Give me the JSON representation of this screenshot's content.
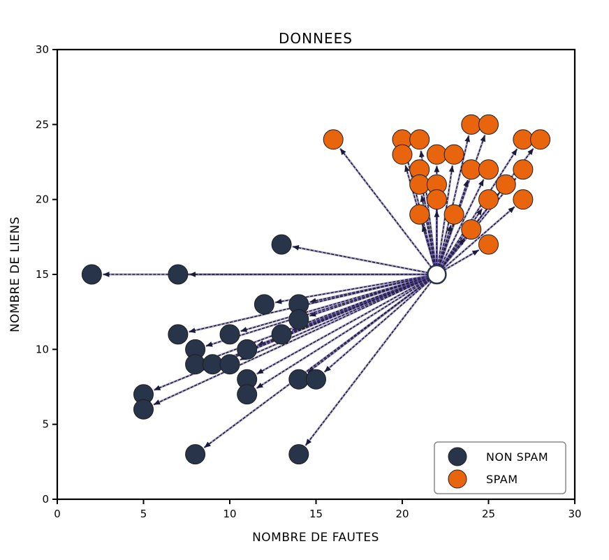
{
  "chart_data": {
    "type": "scatter",
    "title": "DONNEES",
    "xlabel": "NOMBRE DE FAUTES",
    "ylabel": "NOMBRE DE LIENS",
    "xlim": [
      0,
      30
    ],
    "ylim": [
      0,
      30
    ],
    "xticks": [
      "0",
      "5",
      "10",
      "15",
      "20",
      "25",
      "30"
    ],
    "yticks": [
      "0",
      "5",
      "10",
      "15",
      "20",
      "25",
      "30"
    ],
    "grid": false,
    "legend_position": "bottom-right",
    "query_point": {
      "x": 22,
      "y": 15,
      "color": "#ffffff"
    },
    "series": [
      {
        "name": "NON SPAM",
        "color": "#283449",
        "points": [
          [
            2,
            15
          ],
          [
            7,
            15
          ],
          [
            13,
            17
          ],
          [
            12,
            13
          ],
          [
            14,
            13
          ],
          [
            14,
            12
          ],
          [
            7,
            11
          ],
          [
            10,
            11
          ],
          [
            13,
            11
          ],
          [
            8,
            10
          ],
          [
            11,
            10
          ],
          [
            8,
            9
          ],
          [
            9,
            9
          ],
          [
            10,
            9
          ],
          [
            11,
            8
          ],
          [
            14,
            8
          ],
          [
            15,
            8
          ],
          [
            11,
            7
          ],
          [
            5,
            7
          ],
          [
            5,
            6
          ],
          [
            8,
            3
          ],
          [
            14,
            3
          ]
        ]
      },
      {
        "name": "SPAM",
        "color": "#e8650e",
        "points": [
          [
            16,
            24
          ],
          [
            20,
            24
          ],
          [
            21,
            24
          ],
          [
            24,
            25
          ],
          [
            25,
            25
          ],
          [
            27,
            24
          ],
          [
            28,
            24
          ],
          [
            20,
            23
          ],
          [
            22,
            23
          ],
          [
            23,
            23
          ],
          [
            21,
            22
          ],
          [
            24,
            22
          ],
          [
            25,
            22
          ],
          [
            27,
            22
          ],
          [
            21,
            21
          ],
          [
            22,
            21
          ],
          [
            26,
            21
          ],
          [
            22,
            20
          ],
          [
            25,
            20
          ],
          [
            27,
            20
          ],
          [
            21,
            19
          ],
          [
            23,
            19
          ],
          [
            24,
            18
          ],
          [
            25,
            17
          ]
        ]
      }
    ]
  }
}
